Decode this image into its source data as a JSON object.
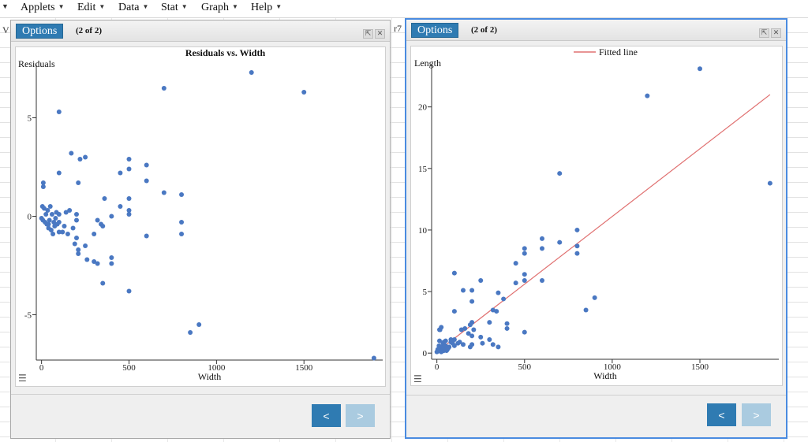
{
  "menu": {
    "items": [
      "Applets",
      "Edit",
      "Data",
      "Stat",
      "Graph",
      "Help"
    ]
  },
  "sheet": {
    "left_fragment": "V",
    "mid_fragment": "r7"
  },
  "window_left": {
    "options_label": "Options",
    "page_indicator": "(2 of 2)",
    "prev_label": "<",
    "next_label": ">"
  },
  "window_right": {
    "options_label": "Options",
    "page_indicator": "(2 of 2)",
    "prev_label": "<",
    "next_label": ">"
  },
  "chart_data": [
    {
      "type": "scatter",
      "title": "Residuals vs. Width",
      "xlabel": "Width",
      "ylabel": "Residuals",
      "xlim": [
        -30,
        1950
      ],
      "ylim": [
        -7.3,
        7.7
      ],
      "xticks": [
        0,
        500,
        1000,
        1500
      ],
      "yticks": [
        -5,
        0,
        5
      ],
      "color": "#4a78c2",
      "points": [
        [
          0,
          -0.1
        ],
        [
          5,
          0.5
        ],
        [
          8,
          -0.2
        ],
        [
          15,
          0.4
        ],
        [
          20,
          -0.3
        ],
        [
          25,
          0.1
        ],
        [
          30,
          -0.4
        ],
        [
          35,
          0.3
        ],
        [
          40,
          -0.6
        ],
        [
          45,
          -0.2
        ],
        [
          50,
          0.5
        ],
        [
          60,
          0.1
        ],
        [
          70,
          -0.3
        ],
        [
          75,
          -0.5
        ],
        [
          80,
          -0.1
        ],
        [
          90,
          -0.4
        ],
        [
          100,
          -0.8
        ],
        [
          100,
          -0.3
        ],
        [
          100,
          0.1
        ],
        [
          100,
          2.2
        ],
        [
          100,
          5.3
        ],
        [
          120,
          -0.8
        ],
        [
          130,
          -0.5
        ],
        [
          140,
          0.2
        ],
        [
          150,
          -0.9
        ],
        [
          160,
          0.3
        ],
        [
          170,
          3.2
        ],
        [
          180,
          -0.6
        ],
        [
          190,
          -1.4
        ],
        [
          200,
          -1.1
        ],
        [
          200,
          -0.2
        ],
        [
          200,
          0.1
        ],
        [
          210,
          -1.7
        ],
        [
          210,
          -1.9
        ],
        [
          210,
          1.7
        ],
        [
          220,
          2.9
        ],
        [
          250,
          3.0
        ],
        [
          250,
          -1.5
        ],
        [
          260,
          -2.2
        ],
        [
          300,
          -2.3
        ],
        [
          300,
          -0.9
        ],
        [
          320,
          -0.2
        ],
        [
          320,
          -2.4
        ],
        [
          340,
          -0.4
        ],
        [
          350,
          -0.5
        ],
        [
          350,
          -3.4
        ],
        [
          360,
          0.9
        ],
        [
          400,
          -2.1
        ],
        [
          400,
          -2.4
        ],
        [
          400,
          0.0
        ],
        [
          450,
          0.5
        ],
        [
          450,
          2.2
        ],
        [
          500,
          2.9
        ],
        [
          500,
          2.4
        ],
        [
          500,
          0.9
        ],
        [
          500,
          0.3
        ],
        [
          500,
          0.1
        ],
        [
          500,
          -3.8
        ],
        [
          600,
          2.6
        ],
        [
          600,
          1.8
        ],
        [
          600,
          -1.0
        ],
        [
          700,
          1.2
        ],
        [
          700,
          6.5
        ],
        [
          800,
          1.1
        ],
        [
          800,
          -0.3
        ],
        [
          800,
          -0.9
        ],
        [
          850,
          -5.9
        ],
        [
          900,
          -5.5
        ],
        [
          1200,
          7.3
        ],
        [
          1500,
          6.3
        ],
        [
          1900,
          -7.2
        ],
        [
          10,
          1.5
        ],
        [
          10,
          1.7
        ],
        [
          40,
          -0.4
        ],
        [
          55,
          -0.7
        ],
        [
          65,
          -0.9
        ],
        [
          85,
          0.2
        ]
      ]
    },
    {
      "type": "scatter",
      "title": "",
      "xlabel": "Width",
      "ylabel": "Length",
      "legend": [
        "Fitted line"
      ],
      "legend_position": "top",
      "xlim": [
        -30,
        1950
      ],
      "ylim": [
        -0.5,
        23.5
      ],
      "xticks": [
        0,
        500,
        1000,
        1500
      ],
      "yticks": [
        0,
        5,
        10,
        15,
        20
      ],
      "color": "#4a78c2",
      "line_color": "#e07070",
      "fitted_line": [
        [
          0,
          0.1
        ],
        [
          1900,
          21.0
        ]
      ],
      "points": [
        [
          0,
          0.1
        ],
        [
          5,
          0.3
        ],
        [
          10,
          0.2
        ],
        [
          12,
          0.6
        ],
        [
          15,
          1.0
        ],
        [
          18,
          1.9
        ],
        [
          20,
          0.4
        ],
        [
          25,
          0.1
        ],
        [
          25,
          2.1
        ],
        [
          30,
          0.5
        ],
        [
          35,
          0.8
        ],
        [
          40,
          0.2
        ],
        [
          40,
          0.9
        ],
        [
          45,
          0.4
        ],
        [
          50,
          1.0
        ],
        [
          50,
          0.6
        ],
        [
          60,
          0.3
        ],
        [
          70,
          0.5
        ],
        [
          80,
          0.9
        ],
        [
          80,
          1.1
        ],
        [
          90,
          0.8
        ],
        [
          100,
          0.6
        ],
        [
          100,
          1.1
        ],
        [
          100,
          6.5
        ],
        [
          100,
          3.4
        ],
        [
          120,
          0.8
        ],
        [
          130,
          0.9
        ],
        [
          140,
          1.9
        ],
        [
          150,
          0.7
        ],
        [
          150,
          5.1
        ],
        [
          160,
          2.0
        ],
        [
          180,
          1.6
        ],
        [
          190,
          2.3
        ],
        [
          190,
          0.5
        ],
        [
          200,
          0.7
        ],
        [
          200,
          1.4
        ],
        [
          200,
          4.2
        ],
        [
          200,
          5.1
        ],
        [
          200,
          2.5
        ],
        [
          210,
          1.9
        ],
        [
          250,
          1.3
        ],
        [
          250,
          5.9
        ],
        [
          260,
          0.8
        ],
        [
          300,
          2.5
        ],
        [
          300,
          1.1
        ],
        [
          320,
          3.5
        ],
        [
          320,
          0.7
        ],
        [
          340,
          3.4
        ],
        [
          350,
          4.9
        ],
        [
          350,
          0.5
        ],
        [
          380,
          4.4
        ],
        [
          400,
          2.4
        ],
        [
          400,
          2.0
        ],
        [
          450,
          7.3
        ],
        [
          450,
          5.7
        ],
        [
          500,
          5.9
        ],
        [
          500,
          6.4
        ],
        [
          500,
          8.1
        ],
        [
          500,
          8.5
        ],
        [
          500,
          1.7
        ],
        [
          600,
          5.9
        ],
        [
          600,
          8.5
        ],
        [
          600,
          9.3
        ],
        [
          700,
          9.0
        ],
        [
          700,
          14.6
        ],
        [
          800,
          8.1
        ],
        [
          800,
          8.7
        ],
        [
          800,
          10.0
        ],
        [
          850,
          3.5
        ],
        [
          900,
          4.5
        ],
        [
          1200,
          20.9
        ],
        [
          1500,
          23.1
        ],
        [
          1900,
          13.8
        ],
        [
          15,
          1.9
        ],
        [
          55,
          0.2
        ],
        [
          65,
          0.4
        ]
      ]
    }
  ]
}
